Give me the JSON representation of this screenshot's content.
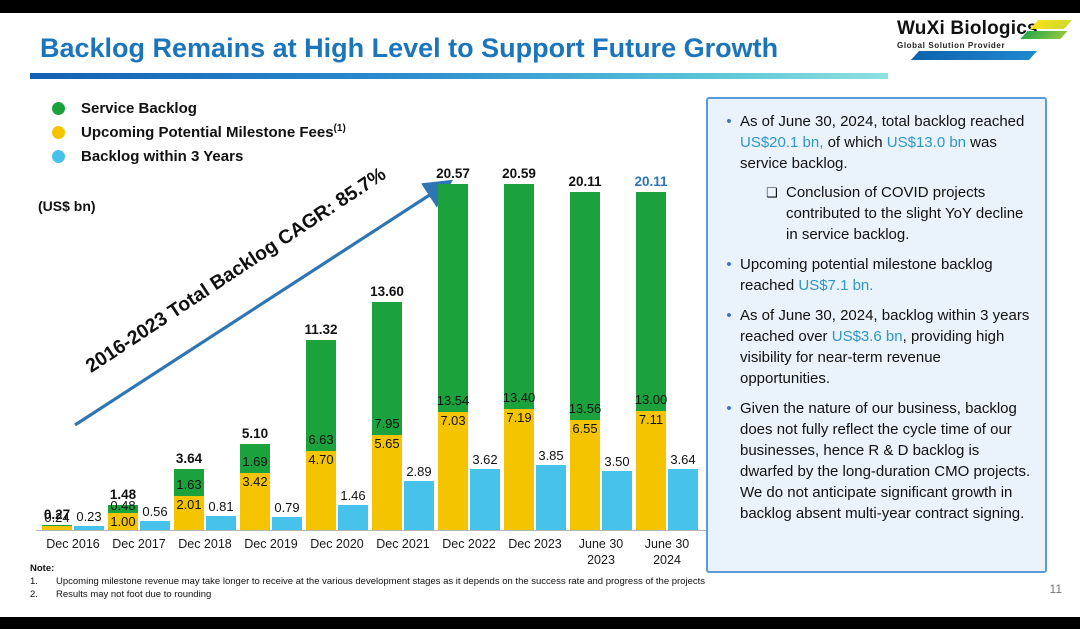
{
  "header": {
    "title": "Backlog Remains at High Level to Support Future Growth",
    "logo": {
      "name": "WuXi Biologics",
      "tagline": "Global Solution Provider"
    }
  },
  "legend": {
    "items": [
      {
        "label": "Service Backlog",
        "sup": "",
        "color": "#1ca23c"
      },
      {
        "label": "Upcoming Potential Milestone Fees",
        "sup": "(1)",
        "color": "#f5c400"
      },
      {
        "label": "Backlog within 3 Years",
        "sup": "",
        "color": "#47c2ea"
      }
    ]
  },
  "chart_data": {
    "type": "bar",
    "title": "Backlog Remains at High Level to Support Future Growth",
    "units_label": "(US$ bn)",
    "cagr_annotation": "2016-2023 Total Backlog CAGR: 85.7%",
    "ylim": [
      0,
      22
    ],
    "legend_position": "top-left",
    "grid": false,
    "categories": [
      "Dec 2016",
      "Dec 2017",
      "Dec 2018",
      "Dec 2019",
      "Dec 2020",
      "Dec 2021",
      "Dec 2022",
      "Dec 2023",
      "June 30 2023",
      "June 30 2024"
    ],
    "category_lines": [
      [
        "Dec 2016"
      ],
      [
        "Dec 2017"
      ],
      [
        "Dec 2018"
      ],
      [
        "Dec 2019"
      ],
      [
        "Dec 2020"
      ],
      [
        "Dec 2021"
      ],
      [
        "Dec 2022"
      ],
      [
        "Dec 2023"
      ],
      [
        "June 30",
        "2023"
      ],
      [
        "June 30",
        "2024"
      ]
    ],
    "series": [
      {
        "name": "Service Backlog",
        "color": "#1ca23c",
        "stacked": true,
        "values": [
          0.03,
          0.48,
          1.63,
          1.69,
          6.63,
          7.95,
          13.54,
          13.4,
          13.56,
          13.0
        ],
        "labels": [
          "",
          "0.48",
          "1.63",
          "1.69",
          "6.63",
          "7.95",
          "13.54",
          "13.40",
          "13.56",
          "13.00"
        ]
      },
      {
        "name": "Upcoming Potential Milestone Fees",
        "color": "#f5c400",
        "stacked": true,
        "values": [
          0.24,
          1.0,
          2.01,
          3.42,
          4.7,
          5.65,
          7.03,
          7.19,
          6.55,
          7.11
        ],
        "labels": [
          "0.24",
          "1.00",
          "2.01",
          "3.42",
          "4.70",
          "5.65",
          "7.03",
          "7.19",
          "6.55",
          "7.11"
        ]
      },
      {
        "name": "Backlog within 3 Years",
        "color": "#47c2ea",
        "stacked": false,
        "values": [
          0.23,
          0.56,
          0.81,
          0.79,
          1.46,
          2.89,
          3.62,
          3.85,
          3.5,
          3.64
        ],
        "labels": [
          "0.23",
          "0.56",
          "0.81",
          "0.79",
          "1.46",
          "2.89",
          "3.62",
          "3.85",
          "3.50",
          "3.64"
        ]
      }
    ],
    "totals": {
      "values": [
        0.27,
        1.48,
        3.64,
        5.1,
        11.32,
        13.6,
        20.57,
        20.59,
        20.11,
        20.11
      ],
      "labels": [
        "0.27",
        "1.48",
        "3.64",
        "5.10",
        "11.32",
        "13.60",
        "20.57",
        "20.59",
        "20.11",
        "20.11"
      ],
      "last_label_color": "#2e75b6"
    }
  },
  "panel": {
    "bullets": [
      {
        "segments": [
          {
            "t": "As of June 30, 2024, total backlog reached "
          },
          {
            "t": "US$20.1 bn,",
            "hl": true
          },
          {
            "t": " of which "
          },
          {
            "t": "US$13.0 bn",
            "hl": true
          },
          {
            "t": " was service backlog."
          }
        ],
        "sub": [
          {
            "segments": [
              {
                "t": "Conclusion of COVID projects contributed to the slight YoY decline in service backlog."
              }
            ]
          }
        ]
      },
      {
        "segments": [
          {
            "t": "Upcoming potential milestone backlog reached "
          },
          {
            "t": "US$7.1 bn.",
            "hl": true
          }
        ]
      },
      {
        "segments": [
          {
            "t": "As of June 30, 2024, backlog within 3 years reached over "
          },
          {
            "t": "US$3.6 bn",
            "hl": true
          },
          {
            "t": ", providing high visibility for near-term revenue opportunities."
          }
        ]
      },
      {
        "segments": [
          {
            "t": "Given the nature of our business, backlog does not fully reflect the cycle time of our businesses, hence R & D backlog is dwarfed by the long-duration CMO projects. We do not anticipate significant growth in backlog absent multi-year contract signing."
          }
        ]
      }
    ],
    "bullet_marker": "•",
    "sub_marker": "❑"
  },
  "notes": {
    "heading": "Note:",
    "items": [
      {
        "num": "1.",
        "text": "Upcoming milestone revenue may take longer to receive at the various development stages as it depends on the success rate and progress of the projects"
      },
      {
        "num": "2.",
        "text": "Results may not foot due to rounding"
      }
    ]
  },
  "footer": {
    "page_number": "11"
  },
  "colors": {
    "title_blue": "#1b75bc",
    "service_green": "#1ca23c",
    "milestone_yellow": "#f5c400",
    "within3_blue": "#47c2ea",
    "arrow_blue": "#2e75b6",
    "highlight_text": "#2e96c8",
    "panel_bg": "#eaf3fb",
    "panel_border": "#5b9bd5",
    "bullet_marker": "#4472c4"
  }
}
